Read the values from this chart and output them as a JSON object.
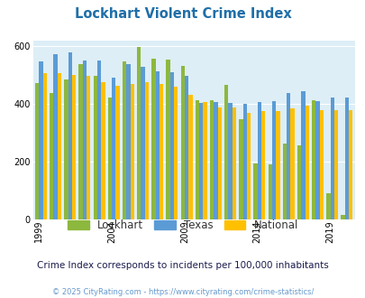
{
  "title": "Lockhart Violent Crime Index",
  "years": [
    1999,
    2000,
    2001,
    2002,
    2003,
    2004,
    2005,
    2006,
    2007,
    2008,
    2009,
    2010,
    2011,
    2012,
    2013,
    2014,
    2015,
    2016,
    2017,
    2018,
    2019,
    2020
  ],
  "lockhart": [
    472,
    436,
    484,
    537,
    497,
    420,
    548,
    597,
    556,
    554,
    531,
    411,
    411,
    466,
    347,
    193,
    189,
    263,
    254,
    411,
    90,
    15
  ],
  "texas": [
    546,
    572,
    578,
    551,
    551,
    490,
    536,
    529,
    512,
    509,
    496,
    404,
    405,
    401,
    400,
    405,
    410,
    437,
    443,
    409,
    420,
    420
  ],
  "national": [
    507,
    506,
    501,
    495,
    476,
    463,
    469,
    474,
    467,
    458,
    430,
    405,
    387,
    387,
    367,
    373,
    373,
    383,
    394,
    376,
    379,
    379
  ],
  "lockhart_color": "#8db83e",
  "texas_color": "#5b9bd5",
  "national_color": "#ffc000",
  "plot_bg": "#ddeef6",
  "ylabel_ticks": [
    0,
    200,
    400,
    600
  ],
  "labeled_years": [
    1999,
    2004,
    2009,
    2014,
    2019
  ],
  "subtitle": "Crime Index corresponds to incidents per 100,000 inhabitants",
  "footer": "© 2025 CityRating.com - https://www.cityrating.com/crime-statistics/",
  "title_color": "#1f6fa8",
  "subtitle_color": "#1a1a4e",
  "footer_color": "#6699cc"
}
